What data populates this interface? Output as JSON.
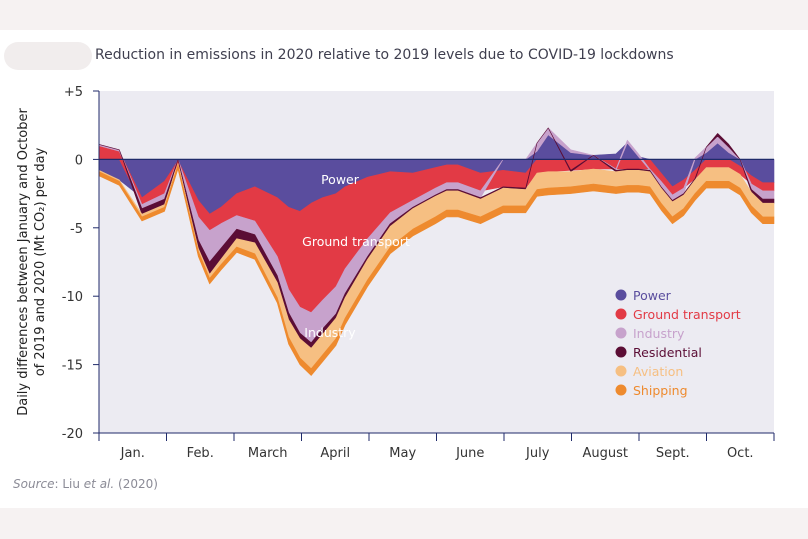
{
  "header": {
    "title": "Reduction in emissions in 2020 relative to 2019 levels due to COVID-19 lockdowns"
  },
  "footer": {
    "source_label": "Source",
    "source_text": "Liu",
    "source_etal": "et al.",
    "source_year": "(2020)"
  },
  "colors": {
    "Power": "#5a4d9e",
    "Ground transport": "#e23a45",
    "Industry": "#c7a2cc",
    "Residential": "#5b0d35",
    "Aviation": "#f6bf82",
    "Shipping": "#ee8a2e",
    "plot_bg": "#ecebf2",
    "zero_line": "#1f2a6a"
  },
  "chart_data": {
    "type": "area",
    "title": "Reduction in emissions in 2020 relative to 2019 levels due to COVID-19 lockdowns",
    "ylabel": "Daily differences between January and October of 2019 and 2020 (Mt CO₂) per day",
    "xlabel": "",
    "ylim": [
      -20,
      5
    ],
    "yticks": [
      "+5",
      "0",
      "-5",
      "-10",
      "-15",
      "-20"
    ],
    "ytick_values": [
      5,
      0,
      -5,
      -10,
      -15,
      -20
    ],
    "categories": [
      "Jan.",
      "Feb.",
      "March",
      "April",
      "May",
      "June",
      "July",
      "August",
      "Sept.",
      "Oct."
    ],
    "x": [
      1,
      10,
      20,
      30,
      36,
      45,
      50,
      55,
      62,
      70,
      80,
      85,
      90,
      95,
      100,
      106,
      110,
      120,
      130,
      140,
      150,
      155,
      160,
      170,
      180,
      190,
      195,
      200,
      210,
      220,
      230,
      235,
      240,
      245,
      250,
      255,
      260,
      265,
      270,
      275,
      280,
      285,
      290,
      295,
      300
    ],
    "legend_position": "bottom-right",
    "grid": false,
    "stacked": true,
    "series": [
      {
        "name": "Power",
        "values": [
          -0.8,
          -1.5,
          -2.8,
          -1.6,
          -0.1,
          -3.0,
          -4.0,
          -3.5,
          -2.5,
          -2.0,
          -2.8,
          -3.5,
          -3.8,
          -3.2,
          -2.8,
          -2.5,
          -2.0,
          -1.3,
          -0.9,
          -1.0,
          -0.6,
          -0.4,
          -0.4,
          -1.0,
          -0.8,
          -1.0,
          0.6,
          1.8,
          0.5,
          0.3,
          0.4,
          1.2,
          0.2,
          0.0,
          -1.0,
          -2.0,
          -1.5,
          -0.8,
          0.5,
          1.2,
          0.5,
          -0.5,
          -1.2,
          -1.7,
          -1.7
        ]
      },
      {
        "name": "Ground transport",
        "values": [
          1.0,
          0.6,
          -0.5,
          -0.9,
          -0.2,
          -1.2,
          -1.2,
          -1.2,
          -1.6,
          -2.5,
          -4.3,
          -6.0,
          -7.0,
          -8.0,
          -7.5,
          -6.8,
          -6.0,
          -4.5,
          -3.0,
          -2.0,
          -1.5,
          -1.3,
          -1.3,
          -1.3,
          -1.2,
          -1.1,
          -1.0,
          -0.9,
          -0.8,
          -0.7,
          -0.7,
          -0.7,
          -0.7,
          -0.7,
          -0.6,
          -0.6,
          -0.6,
          -0.6,
          -0.6,
          -0.6,
          -0.6,
          -0.6,
          -0.6,
          -0.6,
          -0.6
        ]
      },
      {
        "name": "Industry",
        "values": [
          0.1,
          0.1,
          -0.3,
          -0.4,
          0.0,
          -1.7,
          -2.3,
          -1.8,
          -1.0,
          -1.0,
          -1.4,
          -1.7,
          -1.9,
          -2.2,
          -2.1,
          -2.0,
          -1.8,
          -1.3,
          -0.8,
          -0.5,
          -0.5,
          -0.5,
          -0.5,
          -0.5,
          0.0,
          0.0,
          0.6,
          0.5,
          0.2,
          0.0,
          -0.1,
          0.2,
          0.2,
          -0.1,
          -0.4,
          -0.4,
          -0.4,
          0.1,
          0.4,
          0.5,
          0.4,
          0.0,
          -0.4,
          -0.6,
          -0.6
        ]
      },
      {
        "name": "Residential",
        "values": [
          0.0,
          0.0,
          -0.4,
          -0.4,
          0.0,
          -0.6,
          -0.9,
          -0.8,
          -0.7,
          -0.6,
          -0.5,
          -0.5,
          -0.4,
          -0.4,
          -0.4,
          -0.3,
          -0.3,
          -0.2,
          -0.2,
          -0.1,
          -0.1,
          -0.1,
          -0.1,
          -0.1,
          -0.1,
          -0.1,
          0.0,
          0.0,
          -0.1,
          0.0,
          -0.1,
          -0.1,
          -0.1,
          -0.1,
          -0.1,
          -0.1,
          -0.1,
          -0.1,
          0.0,
          0.2,
          0.2,
          0.0,
          -0.2,
          -0.3,
          -0.3
        ]
      },
      {
        "name": "Aviation",
        "values": [
          -0.1,
          -0.1,
          -0.2,
          -0.2,
          -0.1,
          -0.2,
          -0.3,
          -0.4,
          -0.6,
          -0.8,
          -1.1,
          -1.3,
          -1.4,
          -1.5,
          -1.5,
          -1.5,
          -1.5,
          -1.5,
          -1.5,
          -1.5,
          -1.5,
          -1.4,
          -1.4,
          -1.3,
          -1.3,
          -1.2,
          -1.2,
          -1.2,
          -1.1,
          -1.1,
          -1.1,
          -1.1,
          -1.1,
          -1.1,
          -1.1,
          -1.1,
          -1.0,
          -1.0,
          -1.0,
          -1.0,
          -1.0,
          -1.0,
          -1.0,
          -1.0,
          -1.0
        ]
      },
      {
        "name": "Shipping",
        "values": [
          -0.3,
          -0.3,
          -0.3,
          -0.3,
          -0.3,
          -0.4,
          -0.4,
          -0.4,
          -0.4,
          -0.4,
          -0.4,
          -0.5,
          -0.5,
          -0.5,
          -0.5,
          -0.5,
          -0.5,
          -0.5,
          -0.5,
          -0.5,
          -0.5,
          -0.5,
          -0.5,
          -0.5,
          -0.5,
          -0.5,
          -0.5,
          -0.5,
          -0.5,
          -0.5,
          -0.5,
          -0.5,
          -0.5,
          -0.5,
          -0.5,
          -0.5,
          -0.5,
          -0.5,
          -0.5,
          -0.5,
          -0.5,
          -0.5,
          -0.5,
          -0.5,
          -0.5
        ]
      }
    ],
    "annotations": [
      "Power",
      "Ground transport",
      "Industry"
    ]
  }
}
